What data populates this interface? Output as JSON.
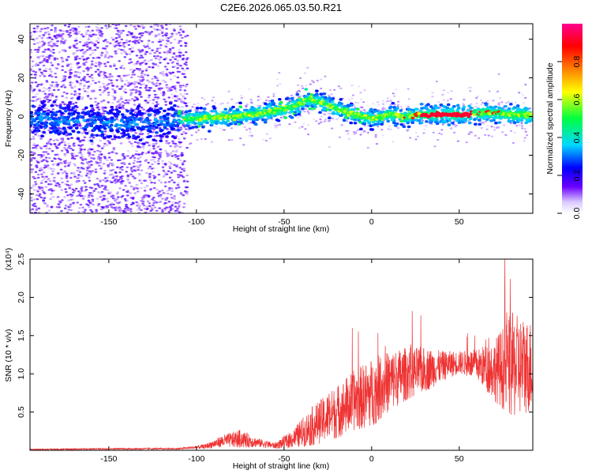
{
  "figure": {
    "title": "C2E6.2026.065.03.50.R21"
  },
  "chart_data": [
    {
      "type": "heatmap",
      "xlabel": "Height of straight line (km)",
      "ylabel": "Frequency (Hz)",
      "xlim": [
        -195,
        92
      ],
      "ylim": [
        -50,
        48
      ],
      "xticks": [
        -150,
        -100,
        -50,
        0,
        50
      ],
      "yticks": [
        -40,
        -20,
        0,
        20,
        40
      ],
      "colorbar": {
        "label": "Normalized spectral amplitude",
        "range": [
          0,
          1
        ],
        "ticks": [
          "0.0",
          "0.2",
          "0.4",
          "0.6",
          "0.8"
        ],
        "stops": [
          "#ffffff",
          "#6a00ff",
          "#0000ff",
          "#00d8ff",
          "#00ff40",
          "#ffff00",
          "#ff8000",
          "#ff0000",
          "#ff0090"
        ]
      },
      "ridge": {
        "x": [
          -195,
          -180,
          -160,
          -140,
          -120,
          -100,
          -80,
          -60,
          -45,
          -35,
          -25,
          -10,
          0,
          10,
          20,
          30,
          45,
          55,
          60,
          70,
          80,
          92
        ],
        "y": [
          0,
          -2,
          -3,
          -4,
          -2,
          -1,
          0,
          2,
          5,
          9,
          6,
          1,
          -1,
          1,
          0,
          1,
          1,
          1,
          2,
          2,
          1,
          1
        ]
      }
    },
    {
      "type": "line",
      "color": "#ee3333",
      "xlabel": "Height of straight line (km)",
      "ylabel": "SNR (10 * v/v)",
      "y_scale_label": "(x10⁴)",
      "xlim": [
        -195,
        92
      ],
      "ylim": [
        0,
        2.5
      ],
      "xticks": [
        -150,
        -100,
        -50,
        0,
        50
      ],
      "yticks": [
        "0.5",
        "1.0",
        "1.5",
        "2.0",
        "2.5"
      ],
      "envelope": {
        "x": [
          -195,
          -150,
          -110,
          -95,
          -85,
          -75,
          -65,
          -55,
          -45,
          -35,
          -20,
          -10,
          0,
          10,
          20,
          30,
          40,
          50,
          60,
          70,
          80,
          92
        ],
        "mean": [
          0.01,
          0.02,
          0.02,
          0.05,
          0.12,
          0.15,
          0.1,
          0.06,
          0.15,
          0.3,
          0.5,
          0.65,
          0.75,
          0.9,
          1.0,
          1.05,
          1.1,
          1.15,
          1.12,
          1.05,
          1.1,
          1.1
        ],
        "spread": [
          0.01,
          0.01,
          0.01,
          0.03,
          0.08,
          0.12,
          0.06,
          0.04,
          0.12,
          0.25,
          0.35,
          0.4,
          0.45,
          0.4,
          0.35,
          0.3,
          0.2,
          0.15,
          0.2,
          0.4,
          0.7,
          0.6
        ]
      }
    }
  ]
}
